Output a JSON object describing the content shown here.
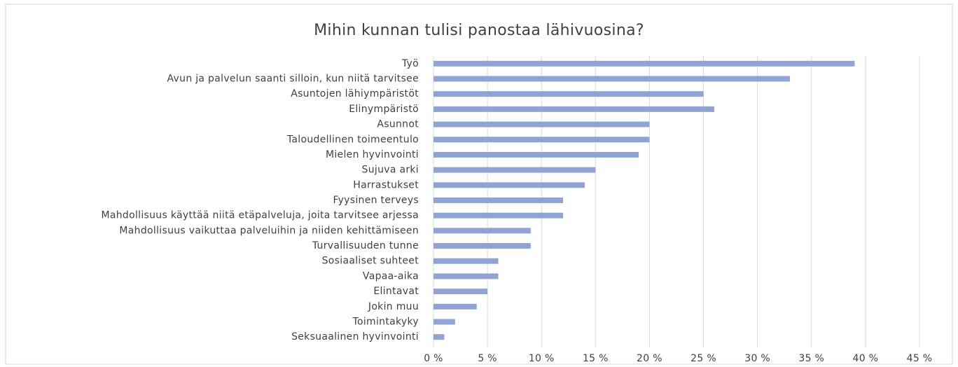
{
  "chart_data": {
    "type": "barh",
    "title": "Mihin kunnan tulisi panostaa lähivuosina?",
    "categories": [
      "Työ",
      "Avun ja palvelun saanti silloin, kun niitä tarvitsee",
      "Asuntojen lähiympäristöt",
      "Elinympäristö",
      "Asunnot",
      "Taloudellinen toimeentulo",
      "Mielen hyvinvointi",
      "Sujuva arki",
      "Harrastukset",
      "Fyysinen terveys",
      "Mahdollisuus käyttää niitä etäpalveluja, joita tarvitsee arjessa",
      "Mahdollisuus vaikuttaa palveluihin ja niiden kehittämiseen",
      "Turvallisuuden tunne",
      "Sosiaaliset suhteet",
      "Vapaa-aika",
      "Elintavat",
      "Jokin muu",
      "Toimintakyky",
      "Seksuaalinen hyvinvointi"
    ],
    "values": [
      39,
      33,
      25,
      26,
      20,
      20,
      19,
      15,
      14,
      12,
      12,
      9,
      9,
      6,
      6,
      5,
      4,
      2,
      1
    ],
    "color": "#8fa3d6",
    "xlim": [
      0,
      45
    ],
    "xticks": [
      {
        "value": 0,
        "label": "0 %"
      },
      {
        "value": 5,
        "label": "5 %"
      },
      {
        "value": 10,
        "label": "10 %"
      },
      {
        "value": 15,
        "label": "15 %"
      },
      {
        "value": 20,
        "label": "20 %"
      },
      {
        "value": 25,
        "label": "25 %"
      },
      {
        "value": 30,
        "label": "30 %"
      },
      {
        "value": 35,
        "label": "35 %"
      },
      {
        "value": 40,
        "label": "40 %"
      },
      {
        "value": 45,
        "label": "45 %"
      }
    ],
    "grid": true
  }
}
